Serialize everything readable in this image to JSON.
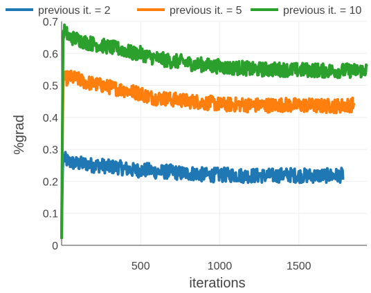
{
  "chart_data": {
    "type": "line",
    "xlabel": "iterations",
    "ylabel": "%grad",
    "xlim": [
      0,
      1930
    ],
    "ylim": [
      0,
      0.7
    ],
    "xticks": [
      500,
      1000,
      1500
    ],
    "xtick_labels": [
      "500",
      "1000",
      "1500"
    ],
    "yticks": [
      0,
      0.1,
      0.2,
      0.3,
      0.4,
      0.5,
      0.6,
      0.7
    ],
    "ytick_labels": [
      "0",
      "0.1",
      "0.2",
      "0.3",
      "0.4",
      "0.5",
      "0.6",
      "0.7"
    ],
    "grid": true,
    "legend_position": "top",
    "series": [
      {
        "name": "previous it. = 2",
        "color": "#1f77b4",
        "x": [
          0,
          5,
          10,
          20,
          50,
          100,
          150,
          200,
          250,
          300,
          350,
          400,
          450,
          500,
          550,
          600,
          650,
          700,
          750,
          800,
          850,
          900,
          950,
          1000,
          1050,
          1100,
          1150,
          1200,
          1250,
          1300,
          1350,
          1400,
          1450,
          1500,
          1550,
          1600,
          1650,
          1700,
          1750,
          1780
        ],
        "y": [
          0.02,
          0.22,
          0.28,
          0.27,
          0.26,
          0.255,
          0.255,
          0.25,
          0.25,
          0.245,
          0.245,
          0.24,
          0.235,
          0.235,
          0.235,
          0.23,
          0.23,
          0.23,
          0.225,
          0.225,
          0.225,
          0.22,
          0.22,
          0.22,
          0.22,
          0.22,
          0.218,
          0.218,
          0.218,
          0.218,
          0.218,
          0.22,
          0.22,
          0.218,
          0.218,
          0.218,
          0.218,
          0.218,
          0.218,
          0.22
        ]
      },
      {
        "name": "previous it. = 5",
        "color": "#ff7f0e",
        "x": [
          0,
          5,
          10,
          20,
          50,
          100,
          150,
          200,
          250,
          300,
          350,
          400,
          450,
          500,
          550,
          600,
          650,
          700,
          750,
          800,
          850,
          900,
          950,
          1000,
          1050,
          1100,
          1150,
          1200,
          1250,
          1300,
          1350,
          1400,
          1450,
          1500,
          1550,
          1600,
          1650,
          1700,
          1750,
          1800,
          1850
        ],
        "y": [
          0.02,
          0.35,
          0.52,
          0.52,
          0.525,
          0.52,
          0.51,
          0.505,
          0.5,
          0.495,
          0.49,
          0.485,
          0.48,
          0.475,
          0.465,
          0.46,
          0.46,
          0.455,
          0.455,
          0.45,
          0.45,
          0.445,
          0.445,
          0.44,
          0.44,
          0.44,
          0.44,
          0.438,
          0.438,
          0.438,
          0.438,
          0.44,
          0.438,
          0.438,
          0.438,
          0.436,
          0.436,
          0.436,
          0.436,
          0.438,
          0.44
        ]
      },
      {
        "name": "previous it. = 10",
        "color": "#2ca02c",
        "x": [
          0,
          5,
          10,
          20,
          50,
          100,
          150,
          200,
          250,
          300,
          350,
          400,
          450,
          500,
          550,
          600,
          650,
          700,
          750,
          800,
          850,
          900,
          950,
          1000,
          1050,
          1100,
          1150,
          1200,
          1250,
          1300,
          1350,
          1400,
          1450,
          1500,
          1550,
          1600,
          1650,
          1700,
          1750,
          1800,
          1850,
          1900,
          1930
        ],
        "y": [
          0.02,
          0.4,
          0.67,
          0.67,
          0.65,
          0.645,
          0.635,
          0.63,
          0.625,
          0.62,
          0.615,
          0.61,
          0.6,
          0.6,
          0.59,
          0.585,
          0.58,
          0.575,
          0.575,
          0.57,
          0.565,
          0.565,
          0.56,
          0.56,
          0.555,
          0.555,
          0.555,
          0.55,
          0.55,
          0.55,
          0.55,
          0.55,
          0.548,
          0.548,
          0.548,
          0.548,
          0.546,
          0.546,
          0.546,
          0.546,
          0.546,
          0.546,
          0.55
        ]
      }
    ]
  }
}
